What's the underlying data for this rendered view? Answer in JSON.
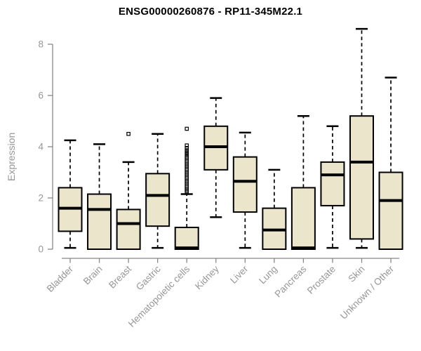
{
  "colors": {
    "background": "#ffffff",
    "box_fill": "#EBE5CB",
    "box_stroke": "#000000",
    "axis_line": "#888888",
    "axis_text": "#969696",
    "title_text": "#000000"
  },
  "chart_data": {
    "type": "boxplot",
    "title": "ENSG00000260876 - RP11-345M22.1",
    "ylabel": "Expression",
    "xlabel": "",
    "ylim": [
      0,
      8.7
    ],
    "yticks": [
      0,
      2,
      4,
      6,
      8
    ],
    "grid": false,
    "legend": "none",
    "categories": [
      "Bladder",
      "Brain",
      "Breast",
      "Gastric",
      "Hematopoietic cells",
      "Kidney",
      "Liver",
      "Lung",
      "Pancreas",
      "Prostate",
      "Skin",
      "Unknown / Other"
    ],
    "series": [
      {
        "label": "Bladder",
        "whisker_low": 0.05,
        "q1": 0.7,
        "median": 1.6,
        "q3": 2.4,
        "whisker_high": 4.25,
        "outliers": []
      },
      {
        "label": "Brain",
        "whisker_low": 0.0,
        "q1": 0.0,
        "median": 1.55,
        "q3": 2.15,
        "whisker_high": 4.1,
        "outliers": []
      },
      {
        "label": "Breast",
        "whisker_low": 0.0,
        "q1": 0.0,
        "median": 1.0,
        "q3": 1.55,
        "whisker_high": 3.4,
        "outliers": [
          4.5
        ]
      },
      {
        "label": "Gastric",
        "whisker_low": 0.05,
        "q1": 0.9,
        "median": 2.1,
        "q3": 2.95,
        "whisker_high": 4.5,
        "outliers": []
      },
      {
        "label": "Hematopoietic cells",
        "whisker_low": 0.0,
        "q1": 0.0,
        "median": 0.05,
        "q3": 0.85,
        "whisker_high": 2.15,
        "outliers": [
          2.25,
          2.3,
          2.36,
          2.42,
          2.48,
          2.54,
          2.6,
          2.66,
          2.72,
          2.78,
          2.84,
          2.9,
          2.96,
          3.02,
          3.08,
          3.14,
          3.2,
          3.26,
          3.32,
          3.38,
          3.44,
          3.5,
          3.56,
          3.62,
          3.7,
          3.78,
          3.86,
          3.95,
          4.05,
          4.7
        ]
      },
      {
        "label": "Kidney",
        "whisker_low": 1.25,
        "q1": 3.1,
        "median": 4.0,
        "q3": 4.8,
        "whisker_high": 5.9,
        "outliers": []
      },
      {
        "label": "Liver",
        "whisker_low": 0.05,
        "q1": 1.45,
        "median": 2.65,
        "q3": 3.6,
        "whisker_high": 4.55,
        "outliers": []
      },
      {
        "label": "Lung",
        "whisker_low": 0.0,
        "q1": 0.0,
        "median": 0.75,
        "q3": 1.6,
        "whisker_high": 3.1,
        "outliers": []
      },
      {
        "label": "Pancreas",
        "whisker_low": 0.0,
        "q1": 0.0,
        "median": 0.05,
        "q3": 2.4,
        "whisker_high": 5.2,
        "outliers": []
      },
      {
        "label": "Prostate",
        "whisker_low": 0.05,
        "q1": 1.7,
        "median": 2.9,
        "q3": 3.4,
        "whisker_high": 4.8,
        "outliers": []
      },
      {
        "label": "Skin",
        "whisker_low": 0.05,
        "q1": 0.4,
        "median": 3.4,
        "q3": 5.2,
        "whisker_high": 8.6,
        "outliers": []
      },
      {
        "label": "Unknown / Other",
        "whisker_low": 0.0,
        "q1": 0.0,
        "median": 1.9,
        "q3": 3.0,
        "whisker_high": 6.7,
        "outliers": []
      }
    ]
  }
}
